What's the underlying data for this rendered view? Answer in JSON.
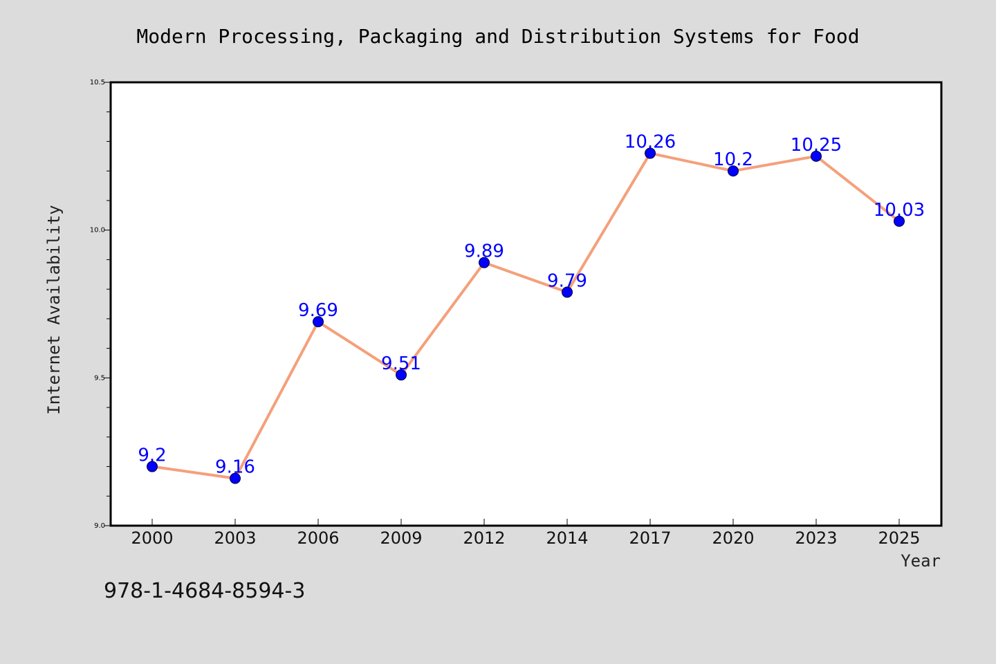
{
  "chart_data": {
    "type": "line",
    "title": "Modern Processing, Packaging and Distribution Systems for Food",
    "xlabel": "Year",
    "ylabel": "Internet Availability",
    "categories": [
      "2000",
      "2003",
      "2006",
      "2009",
      "2012",
      "2014",
      "2017",
      "2020",
      "2023",
      "2025"
    ],
    "series": [
      {
        "values": [
          9.2,
          9.16,
          9.69,
          9.51,
          9.89,
          9.79,
          10.26,
          10.2,
          10.25,
          10.03
        ],
        "labels": [
          "9.2",
          "9.16",
          "9.69",
          "9.51",
          "9.89",
          "9.79",
          "10.26",
          "10.2",
          "10.25",
          "10.03"
        ],
        "line_color": "#f4a07a",
        "marker_color": "#0000ff",
        "label_color": "#0000ff"
      }
    ],
    "ylim": [
      9.0,
      10.5
    ],
    "yticks": [
      "9.0",
      "9.5",
      "10.0",
      "10.5"
    ],
    "grid": false,
    "legend": "none",
    "footnote": "978-1-4684-8594-3"
  }
}
